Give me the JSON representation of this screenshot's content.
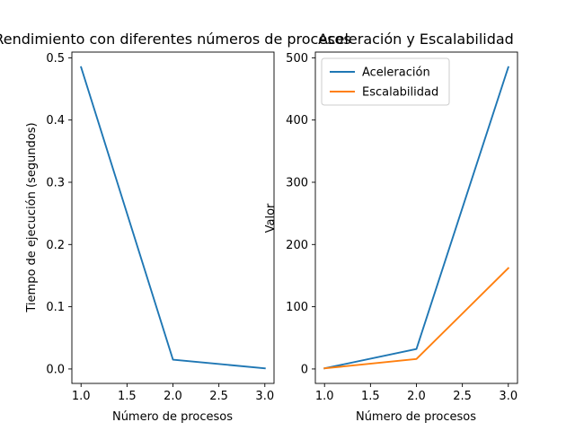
{
  "chart_data": [
    {
      "type": "line",
      "title": "Rendimiento con diferentes números de procesos",
      "xlabel": "Número de procesos",
      "ylabel": "Tiempo de ejecución (segundos)",
      "x": [
        1.0,
        2.0,
        3.0
      ],
      "series": [
        {
          "values": [
            0.485,
            0.015,
            0.001
          ],
          "color": "#1f77b4"
        }
      ],
      "xlim": [
        0.9,
        3.1
      ],
      "ylim": [
        -0.0232,
        0.5092
      ],
      "xticks": [
        1.0,
        1.5,
        2.0,
        2.5,
        3.0
      ],
      "xtick_labels": [
        "1.0",
        "1.5",
        "2.0",
        "2.5",
        "3.0"
      ],
      "yticks": [
        0.0,
        0.1,
        0.2,
        0.3,
        0.4,
        0.5
      ],
      "ytick_labels": [
        "0.0",
        "0.1",
        "0.2",
        "0.3",
        "0.4",
        "0.5"
      ],
      "grid": false,
      "legend": null
    },
    {
      "type": "line",
      "title": "Aceleración y Escalabilidad",
      "xlabel": "Número de procesos",
      "ylabel": "Valor",
      "x": [
        1.0,
        2.0,
        3.0
      ],
      "series": [
        {
          "name": "Aceleración",
          "values": [
            1,
            32,
            485
          ],
          "color": "#1f77b4"
        },
        {
          "name": "Escalabilidad",
          "values": [
            1,
            16,
            162
          ],
          "color": "#ff7f0e"
        }
      ],
      "xlim": [
        0.9,
        3.1
      ],
      "ylim": [
        -23.2,
        509.2
      ],
      "xticks": [
        1.0,
        1.5,
        2.0,
        2.5,
        3.0
      ],
      "xtick_labels": [
        "1.0",
        "1.5",
        "2.0",
        "2.5",
        "3.0"
      ],
      "yticks": [
        0,
        100,
        200,
        300,
        400,
        500
      ],
      "ytick_labels": [
        "0",
        "100",
        "200",
        "300",
        "400",
        "500"
      ],
      "grid": false,
      "legend": "top-left"
    }
  ]
}
